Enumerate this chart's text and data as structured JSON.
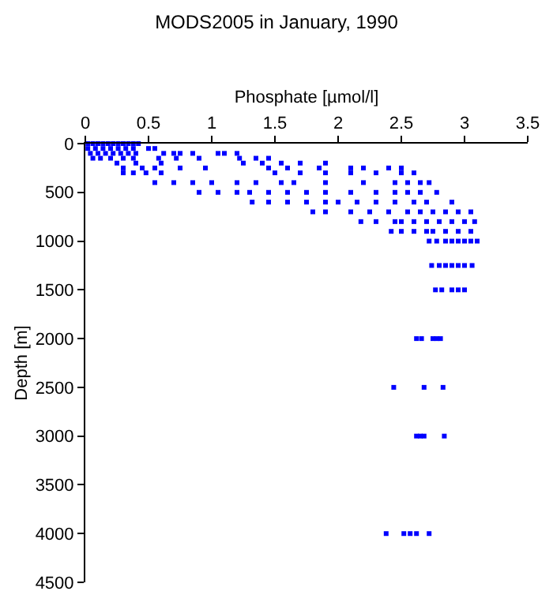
{
  "chart_data": {
    "type": "scatter",
    "title": "MODS2005 in January, 1990",
    "xlabel": "Phosphate [µmol/l]",
    "ylabel": "Depth [m]",
    "xlim": [
      0,
      3.5
    ],
    "xticks": [
      0,
      0.5,
      1,
      1.5,
      2,
      2.5,
      3,
      3.5
    ],
    "ylim": [
      4500,
      0
    ],
    "yticks": [
      0,
      500,
      1000,
      1500,
      2000,
      2500,
      3000,
      3500,
      4000,
      4500
    ],
    "marker": "square",
    "series": [
      {
        "color": "#0000ff",
        "x": [
          0.02,
          0.06,
          0.1,
          0.14,
          0.18,
          0.22,
          0.26,
          0.3,
          0.34,
          0.38,
          0.42,
          0.02,
          0.08,
          0.14,
          0.2,
          0.26,
          0.32,
          0.38,
          0.5,
          0.55,
          0.04,
          0.1,
          0.16,
          0.22,
          0.28,
          0.34,
          0.4,
          0.62,
          0.7,
          0.75,
          0.85,
          1.05,
          1.1,
          1.2,
          0.06,
          0.12,
          0.2,
          0.3,
          0.38,
          0.58,
          0.72,
          0.9,
          1.22,
          1.35,
          1.45,
          0.25,
          0.4,
          0.6,
          1.25,
          1.4,
          1.55,
          1.7,
          1.9,
          0.3,
          0.45,
          0.55,
          0.75,
          0.95,
          1.45,
          1.6,
          1.85,
          2.1,
          2.2,
          2.4,
          2.5,
          0.3,
          0.38,
          0.48,
          0.6,
          1.5,
          1.7,
          1.9,
          2.1,
          2.3,
          2.5,
          2.6,
          0.55,
          0.7,
          0.85,
          1.0,
          1.2,
          1.35,
          1.55,
          1.65,
          1.9,
          2.2,
          2.45,
          2.55,
          2.65,
          2.72,
          0.9,
          1.05,
          1.2,
          1.3,
          1.45,
          1.6,
          1.75,
          1.9,
          2.1,
          2.3,
          2.45,
          2.55,
          2.65,
          2.78,
          1.32,
          1.45,
          1.6,
          1.75,
          1.9,
          2.0,
          2.15,
          2.3,
          2.45,
          2.6,
          2.7,
          2.9,
          1.8,
          1.9,
          2.1,
          2.25,
          2.4,
          2.55,
          2.65,
          2.75,
          2.85,
          2.95,
          3.05,
          2.18,
          2.3,
          2.45,
          2.5,
          2.6,
          2.7,
          2.8,
          2.9,
          3.0,
          3.08,
          2.42,
          2.5,
          2.6,
          2.7,
          2.75,
          2.85,
          2.95,
          3.05,
          2.72,
          2.78,
          2.85,
          2.9,
          2.95,
          3.0,
          3.05,
          3.1,
          2.74,
          2.8,
          2.85,
          2.9,
          2.95,
          3.0,
          3.06,
          2.77,
          2.82,
          2.9,
          2.95,
          3.0,
          2.62,
          2.66,
          2.75,
          2.78,
          2.81,
          2.44,
          2.68,
          2.83,
          2.62,
          2.65,
          2.68,
          2.84,
          2.38,
          2.52,
          2.57,
          2.62,
          2.72
        ],
        "values": [
          0,
          0,
          0,
          0,
          0,
          0,
          0,
          0,
          0,
          0,
          0,
          50,
          50,
          50,
          50,
          50,
          50,
          50,
          50,
          50,
          100,
          100,
          100,
          100,
          100,
          100,
          100,
          100,
          100,
          100,
          100,
          100,
          100,
          100,
          150,
          150,
          150,
          150,
          150,
          150,
          150,
          150,
          150,
          150,
          150,
          200,
          200,
          200,
          200,
          200,
          200,
          200,
          200,
          250,
          250,
          250,
          250,
          250,
          250,
          250,
          250,
          250,
          250,
          250,
          250,
          300,
          300,
          300,
          300,
          300,
          300,
          300,
          300,
          300,
          300,
          300,
          400,
          400,
          400,
          400,
          400,
          400,
          400,
          400,
          400,
          400,
          400,
          400,
          400,
          400,
          500,
          500,
          500,
          500,
          500,
          500,
          500,
          500,
          500,
          500,
          500,
          500,
          500,
          500,
          600,
          600,
          600,
          600,
          600,
          600,
          600,
          600,
          600,
          600,
          600,
          600,
          700,
          700,
          700,
          700,
          700,
          700,
          700,
          700,
          700,
          700,
          700,
          800,
          800,
          800,
          800,
          800,
          800,
          800,
          800,
          800,
          800,
          900,
          900,
          900,
          900,
          900,
          900,
          900,
          900,
          1000,
          1000,
          1000,
          1000,
          1000,
          1000,
          1000,
          1000,
          1250,
          1250,
          1250,
          1250,
          1250,
          1250,
          1250,
          1500,
          1500,
          1500,
          1500,
          1500,
          2000,
          2000,
          2000,
          2000,
          2000,
          2500,
          2500,
          2500,
          3000,
          3000,
          3000,
          3000,
          4000,
          4000,
          4000,
          4000,
          4000
        ]
      }
    ]
  }
}
